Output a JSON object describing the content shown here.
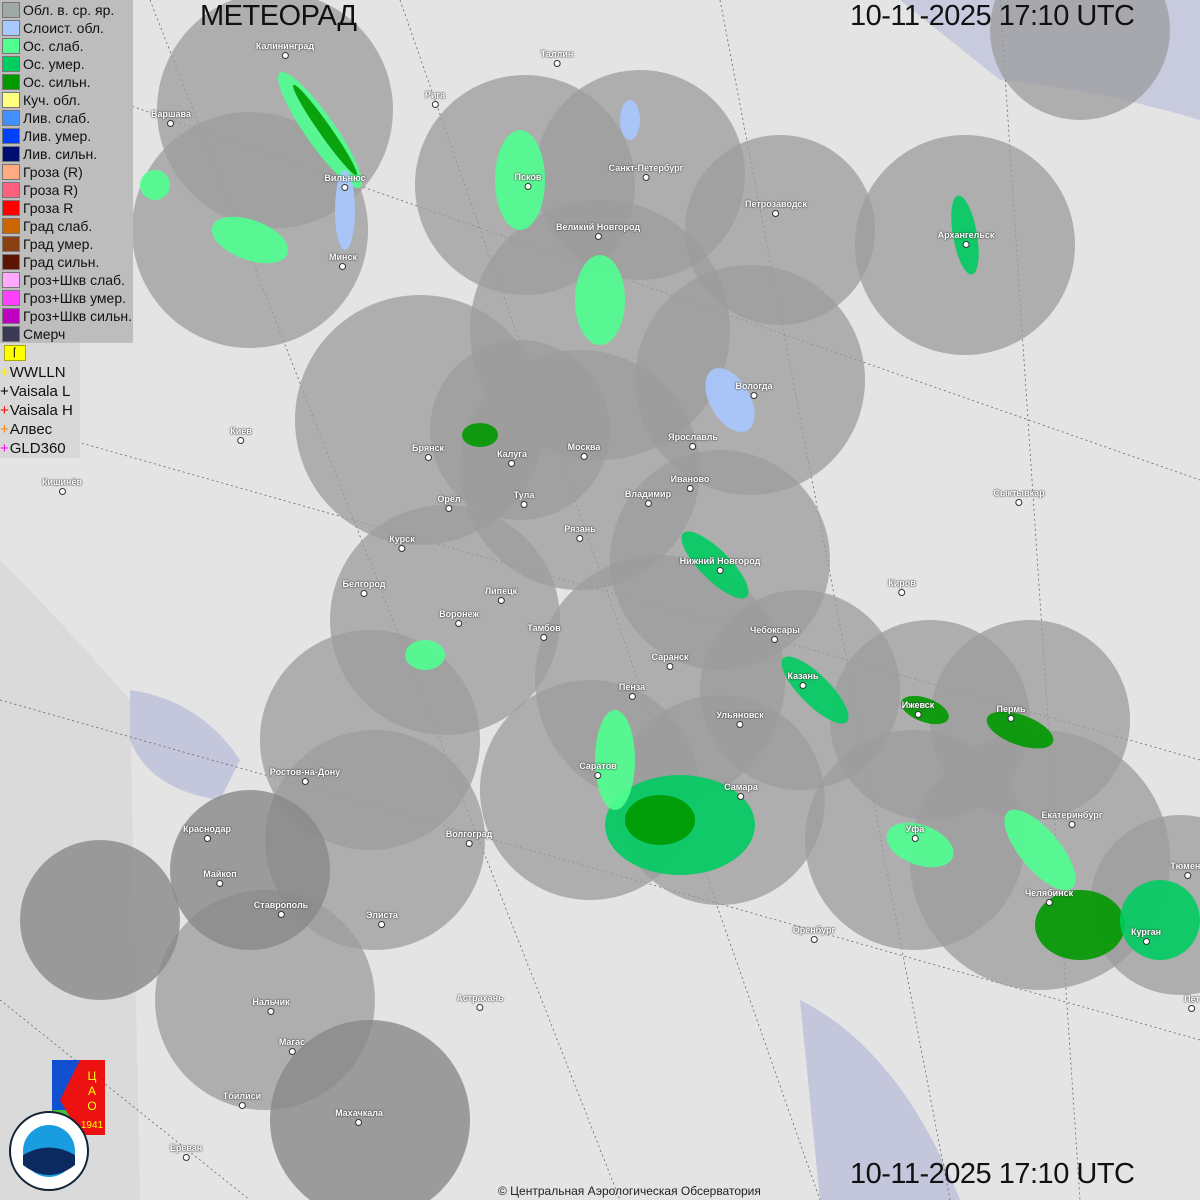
{
  "header": {
    "title": "МЕТЕОРАД",
    "timestamp_top": "10-11-2025  17:10 UTC",
    "timestamp_bottom": "10-11-2025  17:10 UTC"
  },
  "legend": [
    {
      "label": "Обл. в. ср. яр.",
      "color": "#a0a8a8"
    },
    {
      "label": "Слоист. обл.",
      "color": "#a8c8ff"
    },
    {
      "label": "Ос. слаб.",
      "color": "#50ff90"
    },
    {
      "label": "Ос. умер.",
      "color": "#00cc60"
    },
    {
      "label": "Ос. сильн.",
      "color": "#009900"
    },
    {
      "label": "Куч. обл.",
      "color": "#ffff80"
    },
    {
      "label": "Лив. слаб.",
      "color": "#4090ff"
    },
    {
      "label": "Лив. умер.",
      "color": "#0040ff"
    },
    {
      "label": "Лив. сильн.",
      "color": "#000f70"
    },
    {
      "label": "Гроза (R)",
      "color": "#ffaa80"
    },
    {
      "label": "Гроза R)",
      "color": "#ff6080"
    },
    {
      "label": "Гроза R",
      "color": "#ff0000"
    },
    {
      "label": "Град слаб.",
      "color": "#cc6600"
    },
    {
      "label": "Град умер.",
      "color": "#8a4010"
    },
    {
      "label": "Град сильн.",
      "color": "#5a1400"
    },
    {
      "label": "Гроз+Шкв слаб.",
      "color": "#ffaaff"
    },
    {
      "label": "Гроз+Шкв умер.",
      "color": "#ff40ff"
    },
    {
      "label": "Гроз+Шкв сильн.",
      "color": "#c000c0"
    },
    {
      "label": "Смерч",
      "color": "#3a3a55"
    }
  ],
  "lightning": [
    {
      "label": "WWLLN",
      "color": "#ffee00"
    },
    {
      "label": "Vaisala L",
      "color": "#000000"
    },
    {
      "label": "Vaisala H",
      "color": "#ff0000"
    },
    {
      "label": "Алвес",
      "color": "#ff8000"
    },
    {
      "label": "GLD360",
      "color": "#ff00ff"
    }
  ],
  "cities": [
    "Калининград",
    "Таллин",
    "Рига",
    "Варшава",
    "Санкт-Петербург",
    "Псков",
    "Вильнюс",
    "Петрозаводск",
    "Великий Новгород",
    "Архангельск",
    "Минск",
    "Вологда",
    "Киев",
    "Ярославль",
    "Брянск",
    "Москва",
    "Калуга",
    "Иваново",
    "Кишинёв",
    "Тула",
    "Владимир",
    "Сыктывкар",
    "Орёл",
    "Рязань",
    "Курск",
    "Нижний Новгород",
    "Киров",
    "Белгород",
    "Липецк",
    "Воронеж",
    "Тамбов",
    "Чебоксары",
    "Саранск",
    "Пенза",
    "Казань",
    "Ижевск",
    "Пермь",
    "Ульяновск",
    "Саратов",
    "Ростов-на-Дону",
    "Самара",
    "Екатеринбург",
    "Краснодар",
    "Уфа",
    "Волгоград",
    "Майкоп",
    "Тюмень",
    "Челябинск",
    "Ставрополь",
    "Элиста",
    "Оренбург",
    "Курган",
    "Астрахань",
    "Нальчик",
    "Магас",
    "Тбилиси",
    "Махачкала",
    "Ереван",
    "Пет"
  ],
  "logos": {
    "cao_text": "ЦАО 1941",
    "roshydromet_text": "РОСГИДРОМЕТ ROSHYDROMET"
  },
  "footer": {
    "copyright": "© Центральная Аэрологическая Обсерватория"
  }
}
